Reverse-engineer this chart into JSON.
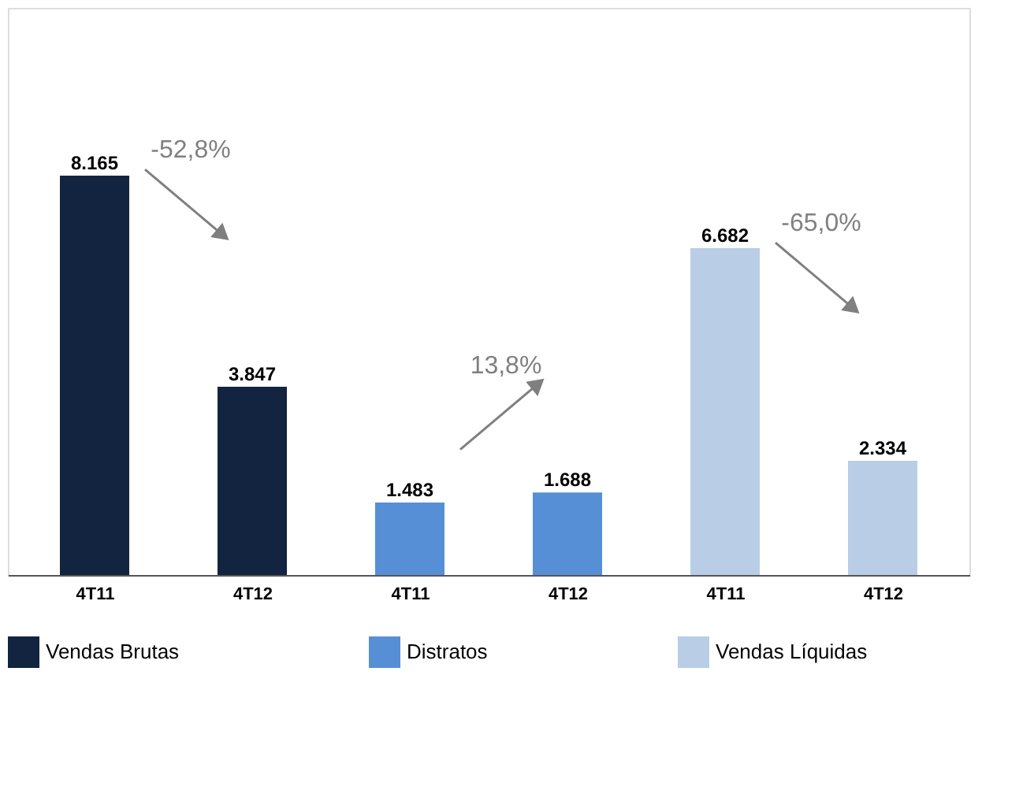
{
  "chart_data": {
    "type": "bar",
    "categories": [
      "4T11",
      "4T12",
      "4T11",
      "4T12",
      "4T11",
      "4T12"
    ],
    "series": [
      {
        "name": "Vendas Brutas",
        "color": "#12243f",
        "values": [
          8165,
          3847,
          null,
          null,
          null,
          null
        ],
        "value_labels": [
          "8.165",
          "3.847",
          null,
          null,
          null,
          null
        ]
      },
      {
        "name": "Distratos",
        "color": "#568fd6",
        "values": [
          null,
          null,
          1483,
          1688,
          null,
          null
        ],
        "value_labels": [
          null,
          null,
          "1.483",
          "1.688",
          null,
          null
        ]
      },
      {
        "name": "Vendas Líquidas",
        "color": "#b9cde6",
        "values": [
          null,
          null,
          null,
          null,
          6682,
          2334
        ],
        "value_labels": [
          null,
          null,
          null,
          null,
          "6.682",
          "2.334"
        ]
      }
    ],
    "annotations": [
      "-52,8%",
      "13,8%",
      "-65,0%"
    ],
    "legend": "bottom",
    "grid": false
  }
}
